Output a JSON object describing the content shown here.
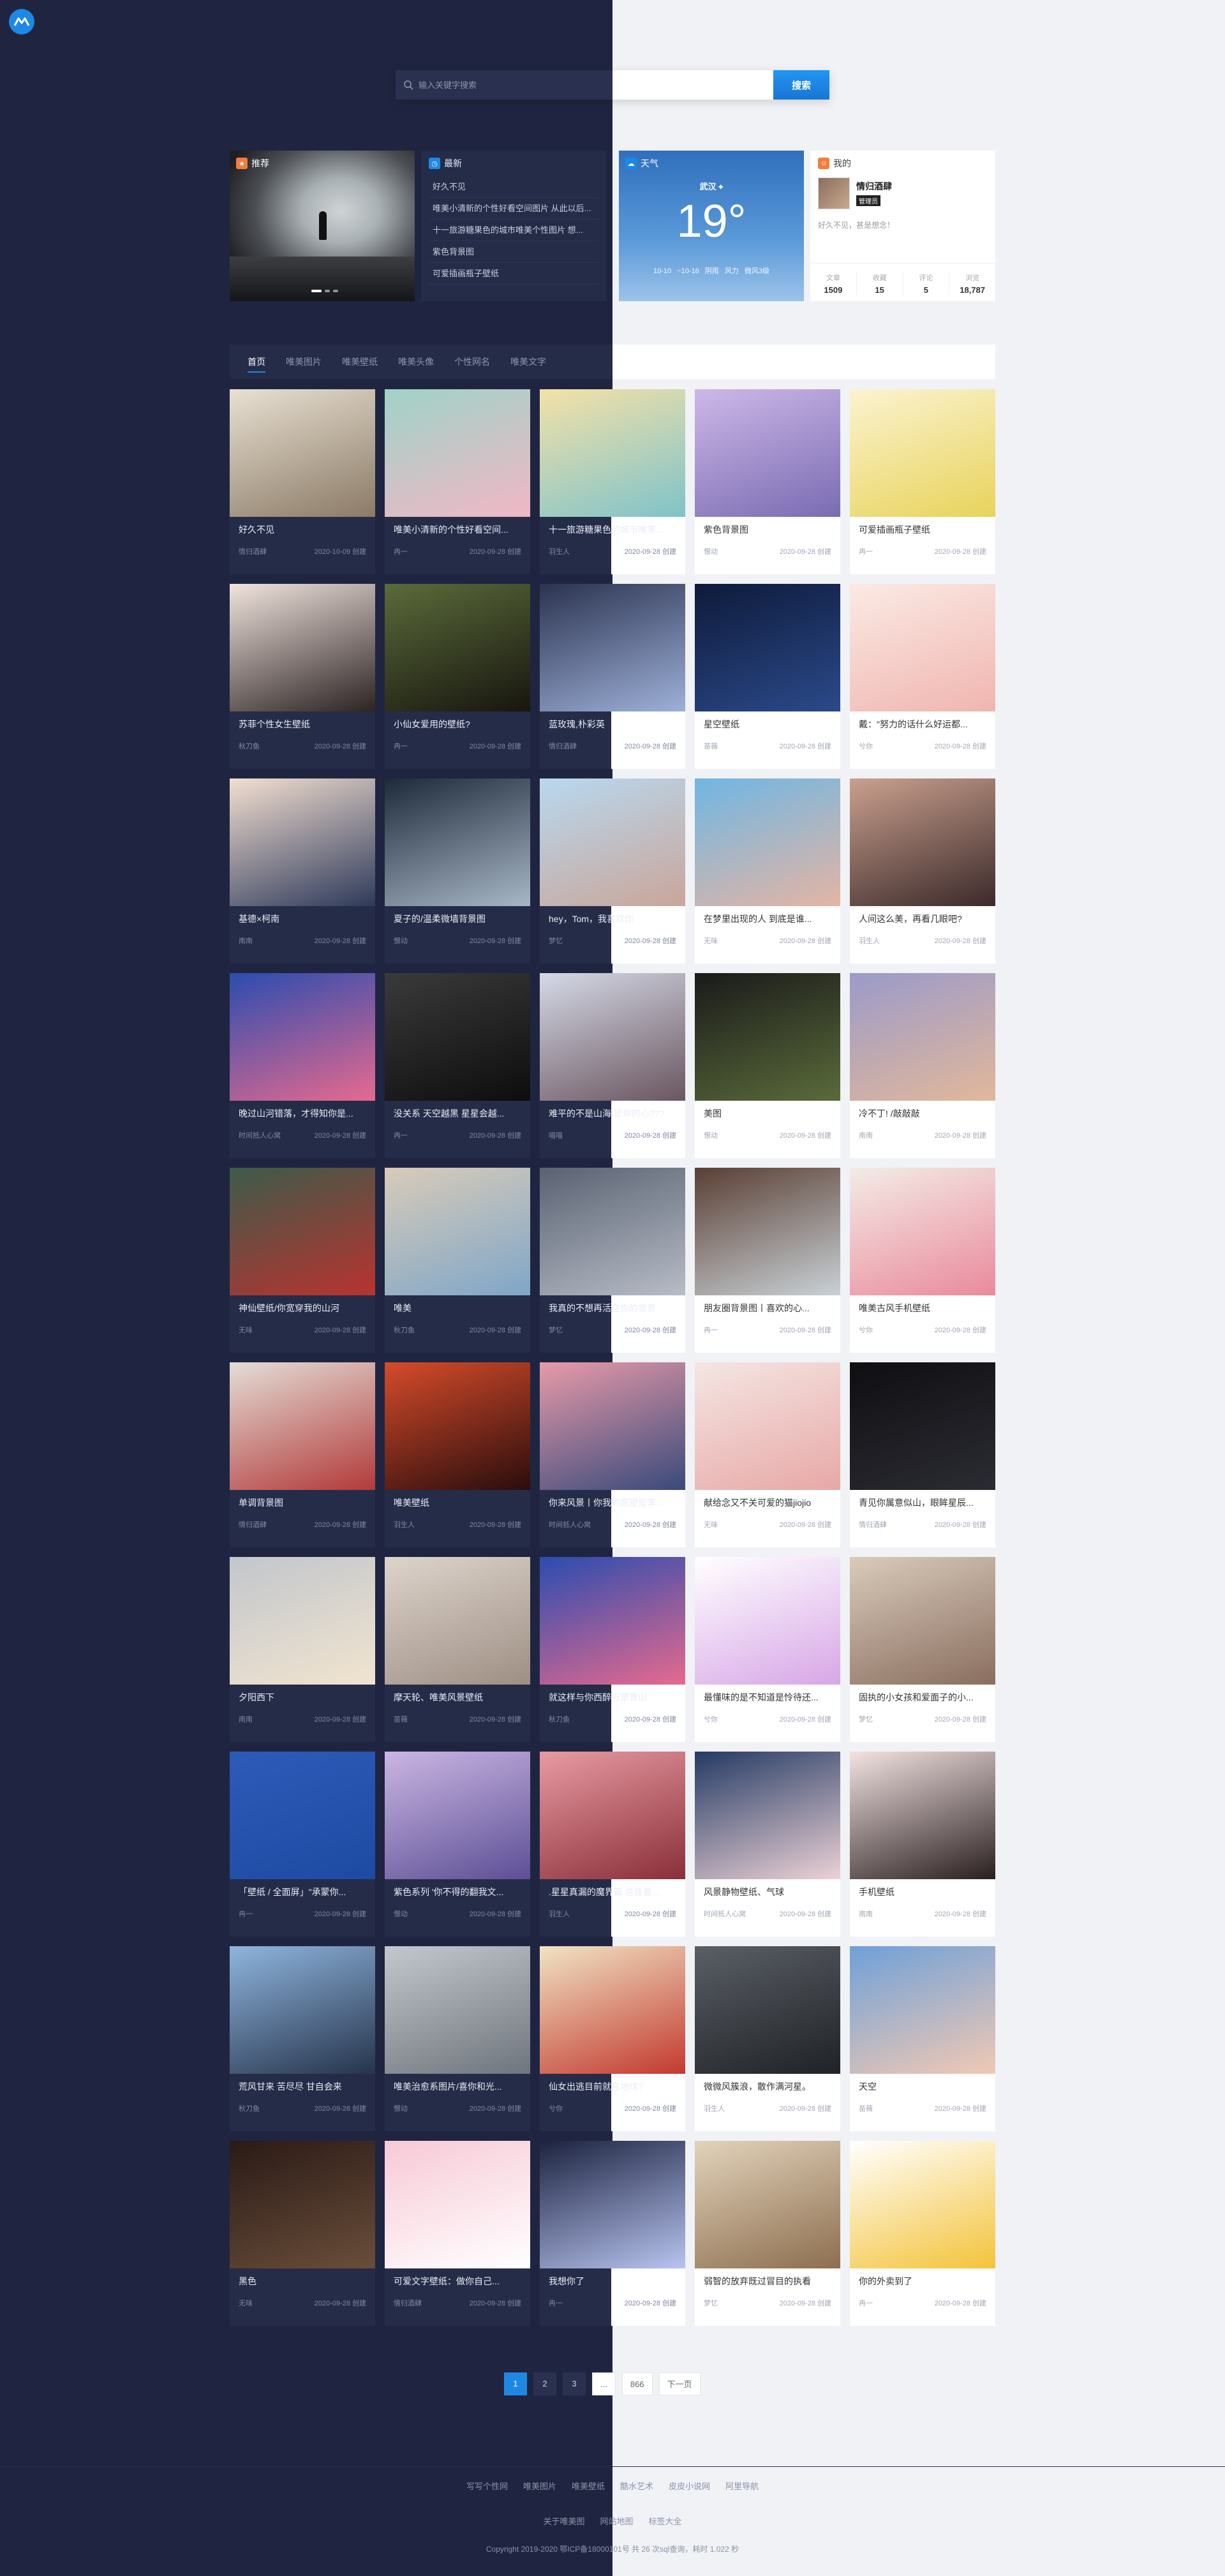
{
  "search": {
    "placeholder": "输入关键字搜索",
    "button_label": "搜索"
  },
  "featured": {
    "tag": "推荐",
    "tag_icon": "thumb-up-icon"
  },
  "news": {
    "heading": "最新",
    "items": [
      "好久不见",
      "唯美小清新的个性好看空间图片 从此以后...",
      "十一旅游糖果色的城市唯美个性图片 想...",
      "紫色背景图",
      "可爱插画瓶子壁纸"
    ]
  },
  "weather": {
    "heading": "天气",
    "city": "武汉",
    "temp": "19°",
    "meta": "10-10 ~10-16 阴雨 风力 微风3级"
  },
  "profile": {
    "heading": "我的",
    "name": "情归酒肆",
    "badge": "管理员",
    "desc": "好久不见，甚是想念！",
    "stats": [
      {
        "label": "文章",
        "value": "1509"
      },
      {
        "label": "收藏",
        "value": "15"
      },
      {
        "label": "评论",
        "value": "5"
      },
      {
        "label": "浏览",
        "value": "18,787"
      }
    ]
  },
  "tabs": [
    "首页",
    "唯美图片",
    "唯美壁纸",
    "唯美头像",
    "个性网名",
    "唯美文字"
  ],
  "posts": [
    {
      "title": "好久不见",
      "author": "情归酒肆",
      "date": "2020-10-09 创建",
      "c1": "#e8e0d2",
      "c2": "#8b7a66"
    },
    {
      "title": "唯美小清新的个性好看空间...",
      "author": "冉一",
      "date": "2020-09-28 创建",
      "c1": "#9fd3c7",
      "c2": "#f1b7c6"
    },
    {
      "title": "十一旅游糖果色的城市唯美...",
      "author": "羽生人",
      "date": "2020-09-28 创建",
      "c1": "#f4e1a8",
      "c2": "#7fc3c9"
    },
    {
      "title": "紫色背景图",
      "author": "憬动",
      "date": "2020-09-28 创建",
      "c1": "#cdb8e8",
      "c2": "#7a6bb2"
    },
    {
      "title": "可爱插画瓶子壁纸",
      "author": "冉一",
      "date": "2020-09-28 创建",
      "c1": "#fbf3d0",
      "c2": "#e8d35a"
    },
    {
      "title": "苏菲个性女生壁纸",
      "author": "秋刀鱼",
      "date": "2020-09-28 创建",
      "c1": "#f1e4de",
      "c2": "#2c2323"
    },
    {
      "title": "小仙女爱用的壁纸?",
      "author": "冉一",
      "date": "2020-09-28 创建",
      "c1": "#5b6b3a",
      "c2": "#17160f"
    },
    {
      "title": "蓝玫瑰,朴彩英",
      "author": "情归酒肆",
      "date": "2020-09-28 创建",
      "c1": "#2b3350",
      "c2": "#9eb0d8"
    },
    {
      "title": "星空壁纸",
      "author": "苗薇",
      "date": "2020-09-28 创建",
      "c1": "#0e1a3a",
      "c2": "#2b4a8a"
    },
    {
      "title": "戴：\"努力的话什么好运都...",
      "author": "兮你",
      "date": "2020-09-28 创建",
      "c1": "#fbeae4",
      "c2": "#f0b5b0"
    },
    {
      "title": "基德×柯南",
      "author": "南南",
      "date": "2020-09-28 创建",
      "c1": "#f3dfd1",
      "c2": "#2e3a5a"
    },
    {
      "title": "夏子的/温柔微墙背景图",
      "author": "憬动",
      "date": "2020-09-28 创建",
      "c1": "#1d2a3a",
      "c2": "#a8b7c6"
    },
    {
      "title": "hey，Tom，我喜欢你",
      "author": "梦忆",
      "date": "2020-09-28 创建",
      "c1": "#b8d8ee",
      "c2": "#c9a69b"
    },
    {
      "title": "在梦里出现的人 到底是谁...",
      "author": "无味",
      "date": "2020-09-28 创建",
      "c1": "#6fb6e3",
      "c2": "#e4b5a4"
    },
    {
      "title": "人间这么美，再看几眼吧?",
      "author": "羽生人",
      "date": "2020-09-28 创建",
      "c1": "#caa08e",
      "c2": "#3b2a2a"
    },
    {
      "title": "晚过山河错落，才得知你是...",
      "author": "时间抵人心窝",
      "date": "2020-09-28 创建",
      "c1": "#2b4cb0",
      "c2": "#e56a8e"
    },
    {
      "title": "没关系 天空越黑 星星会越...",
      "author": "冉一",
      "date": "2020-09-28 创建",
      "c1": "#3a3a3a",
      "c2": "#0d0d0d"
    },
    {
      "title": "难平的不是山海 是你的心???",
      "author": "喵喵",
      "date": "2020-09-28 创建",
      "c1": "#d5d9e6",
      "c2": "#6a5660"
    },
    {
      "title": "美图",
      "author": "憬动",
      "date": "2020-09-28 创建",
      "c1": "#1a1a1a",
      "c2": "#5a6b3a"
    },
    {
      "title": "冷不丁! /敲敲敲",
      "author": "南南",
      "date": "2020-09-28 创建",
      "c1": "#9b9ac9",
      "c2": "#e1b89a"
    },
    {
      "title": "神仙壁纸/你宽穿我的山河",
      "author": "无味",
      "date": "2020-09-28 创建",
      "c1": "#3d5b4a",
      "c2": "#b8332f"
    },
    {
      "title": "唯美",
      "author": "秋刀鱼",
      "date": "2020-09-28 创建",
      "c1": "#d8cbb8",
      "c2": "#7fa6c8"
    },
    {
      "title": "我真的不想再活在你的世界",
      "author": "梦忆",
      "date": "2020-09-28 创建",
      "c1": "#5a6272",
      "c2": "#b7bcc6"
    },
    {
      "title": "朋友圈背景图丨喜欢的心...",
      "author": "冉一",
      "date": "2020-09-28 创建",
      "c1": "#5a3f34",
      "c2": "#c9d1d6"
    },
    {
      "title": "唯美古风手机壁纸",
      "author": "兮你",
      "date": "2020-09-28 创建",
      "c1": "#f3ece6",
      "c2": "#e98a9c"
    },
    {
      "title": "单调背景图",
      "author": "情归酒肆",
      "date": "2020-09-28 创建",
      "c1": "#e4ddd6",
      "c2": "#b23a3a"
    },
    {
      "title": "唯美壁纸",
      "author": "羽生人",
      "date": "2020-09-28 创建",
      "c1": "#d64b2a",
      "c2": "#2a0d0d"
    },
    {
      "title": "你来风景丨你我的愿望是李...",
      "author": "时间抵人心窝",
      "date": "2020-09-28 创建",
      "c1": "#e79aa9",
      "c2": "#394a7a"
    },
    {
      "title": "献给念又不关可爱的猫jiojio",
      "author": "无味",
      "date": "2020-09-28 创建",
      "c1": "#f4e6e3",
      "c2": "#e7a8a6"
    },
    {
      "title": "青见你属意似山，眼眸星辰...",
      "author": "情归酒肆",
      "date": "2020-09-28 创建",
      "c1": "#0f0f12",
      "c2": "#2b2b33"
    },
    {
      "title": "夕阳西下",
      "author": "南南",
      "date": "2020-09-28 创建",
      "c1": "#c2c6cc",
      "c2": "#f1e4cf"
    },
    {
      "title": "摩天轮、唯美风景壁纸",
      "author": "苗薇",
      "date": "2020-09-28 创建",
      "c1": "#ddd4cb",
      "c2": "#9e8f84"
    },
    {
      "title": "就这样与你西醉万里青山",
      "author": "秋刀鱼",
      "date": "2020-09-28 创建",
      "c1": "#2b4cb0",
      "c2": "#e56a8e"
    },
    {
      "title": "最懂味的是不知道是怜待还...",
      "author": "兮你",
      "date": "2020-09-28 创建",
      "c1": "#ffffff",
      "c2": "#d7a6e6"
    },
    {
      "title": "固执的小女孩和爱面子的小...",
      "author": "梦忆",
      "date": "2020-09-28 创建",
      "c1": "#d9cbbb",
      "c2": "#8a6e5f"
    },
    {
      "title": "「壁纸 / 全面屏」\"承蒙你...",
      "author": "冉一",
      "date": "2020-09-28 创建",
      "c1": "#2d5bb8",
      "c2": "#1d4aa2"
    },
    {
      "title": "紫色系列 '你不得的翻我文...",
      "author": "憬动",
      "date": "2020-09-28 创建",
      "c1": "#cbb6e3",
      "c2": "#5c4f95"
    },
    {
      "title": ".星星真漏的魔界篇 总挂着...",
      "author": "羽生人",
      "date": "2020-09-28 创建",
      "c1": "#e89aa2",
      "c2": "#8a2f3a"
    },
    {
      "title": "风景静物壁纸、气球",
      "author": "时间抵人心窝",
      "date": "2020-09-28 创建",
      "c1": "#243a63",
      "c2": "#ecd2d6"
    },
    {
      "title": "手机壁纸",
      "author": "南南",
      "date": "2020-09-28 创建",
      "c1": "#f3e3e3",
      "c2": "#2a1f1f"
    },
    {
      "title": "荒风甘来 苦尽尽 甘自会来",
      "author": "秋刀鱼",
      "date": "2020-09-28 创建",
      "c1": "#8fb5de",
      "c2": "#26344c"
    },
    {
      "title": "唯美治愈系图片/喜你和光...",
      "author": "憬动",
      "date": "2020-09-28 创建",
      "c1": "#c3c8ce",
      "c2": "#6f757c"
    },
    {
      "title": "仙女出逃目前就在地球?",
      "author": "兮你",
      "date": "2020-09-28 创建",
      "c1": "#f0e3c4",
      "c2": "#c33a2f"
    },
    {
      "title": "微微风簇浪，散作满河星。",
      "author": "羽生人",
      "date": "2020-09-28 创建",
      "c1": "#5a5f66",
      "c2": "#1f2226"
    },
    {
      "title": "天空",
      "author": "苗薇",
      "date": "2020-09-28 创建",
      "c1": "#6fa0d8",
      "c2": "#f0c9b3"
    },
    {
      "title": "黑色",
      "author": "无味",
      "date": "2020-09-28 创建",
      "c1": "#2a1a16",
      "c2": "#6a4e3a"
    },
    {
      "title": "可爱文字壁纸：做你自己...",
      "author": "情归酒肆",
      "date": "2020-09-28 创建",
      "c1": "#f7c9d6",
      "c2": "#ffffff"
    },
    {
      "title": "我想你了",
      "author": "冉一",
      "date": "2020-09-28 创建",
      "c1": "#1c2340",
      "c2": "#b8c4f0"
    },
    {
      "title": "弱智的放弃既过冒目的执看",
      "author": "梦忆",
      "date": "2020-09-28 创建",
      "c1": "#e2d3bb",
      "c2": "#8d6e4f"
    },
    {
      "title": "你的外卖到了",
      "author": "冉一",
      "date": "2020-09-28 创建",
      "c1": "#ffffff",
      "c2": "#f3c33a"
    }
  ],
  "pagination": {
    "pages": [
      "1",
      "2",
      "3",
      "...",
      "866"
    ],
    "next": "下一页"
  },
  "footer": {
    "links": [
      "写写个性网",
      "唯美图片",
      "唯美壁纸",
      "酷水艺术",
      "皮皮小说网",
      "阿里导航"
    ],
    "links2": [
      "关于唯美图",
      "网站地图",
      "标签大全"
    ],
    "copyright": "Copyright 2019-2020    鄂ICP备18000101号    共 26 次sql查询，耗时 1.022 秒"
  }
}
